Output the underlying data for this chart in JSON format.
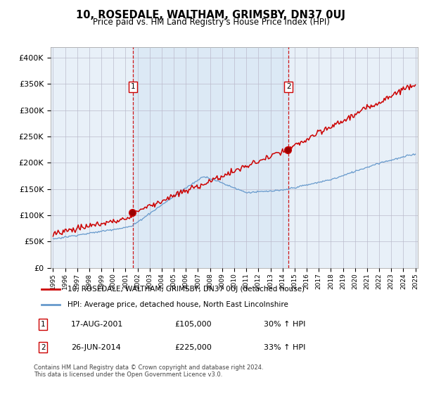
{
  "title": "10, ROSEDALE, WALTHAM, GRIMSBY, DN37 0UJ",
  "subtitle": "Price paid vs. HM Land Registry's House Price Index (HPI)",
  "red_label": "10, ROSEDALE, WALTHAM, GRIMSBY, DN37 0UJ (detached house)",
  "blue_label": "HPI: Average price, detached house, North East Lincolnshire",
  "transaction1_date": "17-AUG-2001",
  "transaction1_price": "£105,000",
  "transaction1_hpi": "30% ↑ HPI",
  "transaction2_date": "26-JUN-2014",
  "transaction2_price": "£225,000",
  "transaction2_hpi": "33% ↑ HPI",
  "footer": "Contains HM Land Registry data © Crown copyright and database right 2024.\nThis data is licensed under the Open Government Licence v3.0.",
  "red_color": "#cc0000",
  "blue_color": "#6699cc",
  "shade_color": "#dce9f5",
  "plot_bg": "#e8f0f8",
  "fig_bg": "#ffffff",
  "grid_color": "#bbbbcc",
  "ylim": [
    0,
    420000
  ],
  "yticks": [
    0,
    50000,
    100000,
    150000,
    200000,
    250000,
    300000,
    350000,
    400000
  ],
  "x_start_year": 1995,
  "x_end_year": 2025,
  "t1_year": 2001.62,
  "t1_price": 105000,
  "t2_year": 2014.49,
  "t2_price": 225000
}
